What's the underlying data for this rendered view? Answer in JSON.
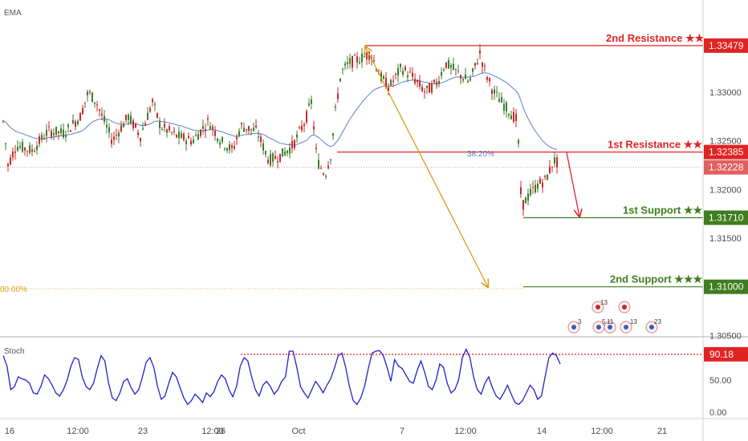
{
  "indicator_label": "EMA",
  "stoch_label": "Stoch",
  "fib_label": "38.20%",
  "fib_left_label": "00.00%",
  "colors": {
    "up": "#26a69a",
    "down": "#ef5350",
    "candle_body_up": "#3a7d2b",
    "candle_body_dn": "#c62828",
    "ema": "#5b7fc7",
    "resistance": "#e02424",
    "support": "#3f7d20",
    "fib": "#d4a017",
    "stoch": "#1f22c8",
    "current": "#e06060"
  },
  "chart_data": {
    "type": "candlestick",
    "ylim": [
      1.3034,
      1.3375
    ],
    "price_ticks": [
      "1.33000",
      "1.32500",
      "1.32000",
      "1.31500",
      "1.30500"
    ],
    "x_ticks": [
      "16",
      "12:00",
      "23",
      "12:00",
      "26",
      "Oct",
      "7",
      "12:00",
      "14",
      "12:00",
      "21"
    ],
    "levels": [
      {
        "name": "2nd Resistance ★★",
        "value": "1.33479",
        "kind": "resistance"
      },
      {
        "name": "1st Resistance ★★",
        "value": "1.32385",
        "kind": "resistance"
      },
      {
        "name": "1st Support ★★",
        "value": "1.31710",
        "kind": "support"
      },
      {
        "name": "2nd Support ★★★",
        "value": "1.31000",
        "kind": "support"
      }
    ],
    "current_price": "1.32228",
    "stoch": {
      "name": "Stoch",
      "ylim": [
        0,
        100
      ],
      "ticks": [
        "50.00",
        "0.00"
      ],
      "level": "90.18",
      "values": [
        88,
        72,
        35,
        40,
        55,
        52,
        50,
        45,
        30,
        28,
        40,
        58,
        52,
        42,
        30,
        25,
        35,
        50,
        72,
        85,
        82,
        55,
        40,
        35,
        45,
        68,
        88,
        80,
        45,
        22,
        18,
        30,
        48,
        52,
        38,
        28,
        35,
        55,
        78,
        85,
        70,
        40,
        20,
        25,
        45,
        62,
        55,
        38,
        22,
        12,
        18,
        28,
        22,
        15,
        30,
        24,
        32,
        48,
        58,
        52,
        35,
        24,
        40,
        72,
        85,
        80,
        55,
        35,
        25,
        42,
        48,
        40,
        28,
        35,
        48,
        55,
        95,
        95,
        70,
        40,
        30,
        22,
        35,
        48,
        40,
        30,
        42,
        52,
        68,
        88,
        92,
        70,
        40,
        18,
        12,
        22,
        40,
        68,
        92,
        95,
        96,
        88,
        70,
        48,
        82,
        72,
        68,
        58,
        48,
        45,
        65,
        80,
        62,
        40,
        35,
        50,
        75,
        70,
        45,
        30,
        35,
        50,
        85,
        98,
        85,
        55,
        35,
        28,
        45,
        55,
        38,
        25,
        20,
        30,
        42,
        28,
        15,
        12,
        18,
        30,
        42,
        35,
        20,
        25,
        55,
        85,
        92,
        88,
        75
      ]
    },
    "events": [
      "13",
      "3",
      "5",
      "11",
      "13",
      "23"
    ]
  }
}
